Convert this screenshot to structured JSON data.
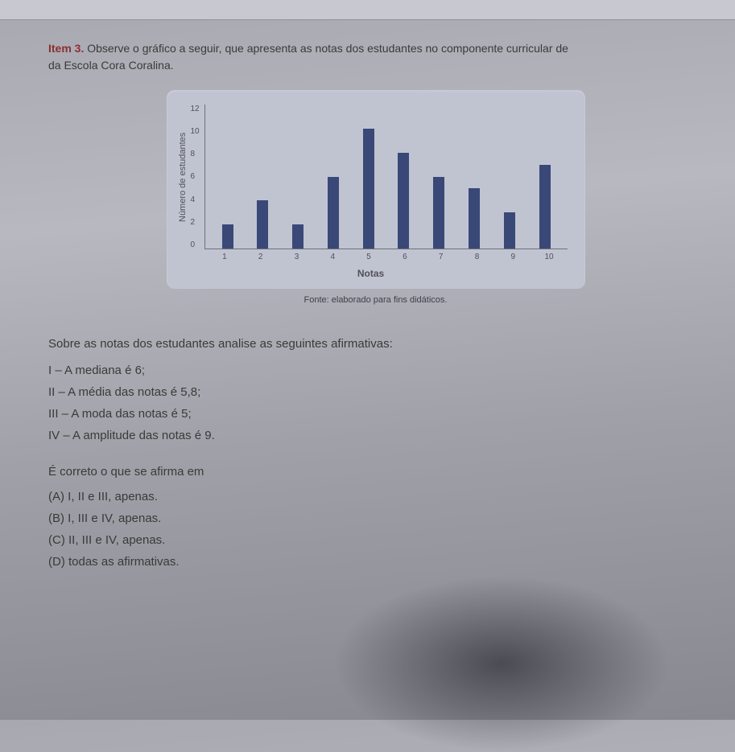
{
  "item": {
    "label": "Item 3.",
    "text_line1": "Observe o gráfico a seguir, que apresenta as notas dos estudantes no componente curricular de",
    "text_line2": "da Escola Cora Coralina."
  },
  "chart": {
    "type": "bar",
    "y_label": "Número de estudantes",
    "y_ticks": [
      "12",
      "10",
      "8",
      "6",
      "4",
      "2",
      "0"
    ],
    "y_max": 12,
    "categories": [
      "1",
      "2",
      "3",
      "4",
      "5",
      "6",
      "7",
      "8",
      "9",
      "10"
    ],
    "values": [
      2,
      4,
      2,
      6,
      10,
      8,
      6,
      5,
      3,
      7
    ],
    "bar_color": "#3a4878",
    "background_color": "#c0c4d0",
    "x_label": "Notas",
    "caption": "Fonte: elaborado para fins didáticos."
  },
  "question": "Sobre as notas dos estudantes analise as seguintes afirmativas:",
  "statements": {
    "i": "I – A mediana é 6;",
    "ii": "II – A média das notas é 5,8;",
    "iii": "III – A moda das notas é 5;",
    "iv": "IV – A amplitude das notas é 9."
  },
  "prompt": "É correto o que se afirma em",
  "options": {
    "a": "(A) I, II e III, apenas.",
    "b": "(B) I, III e IV, apenas.",
    "c": "(C) II, III e IV, apenas.",
    "d": "(D) todas as afirmativas."
  }
}
